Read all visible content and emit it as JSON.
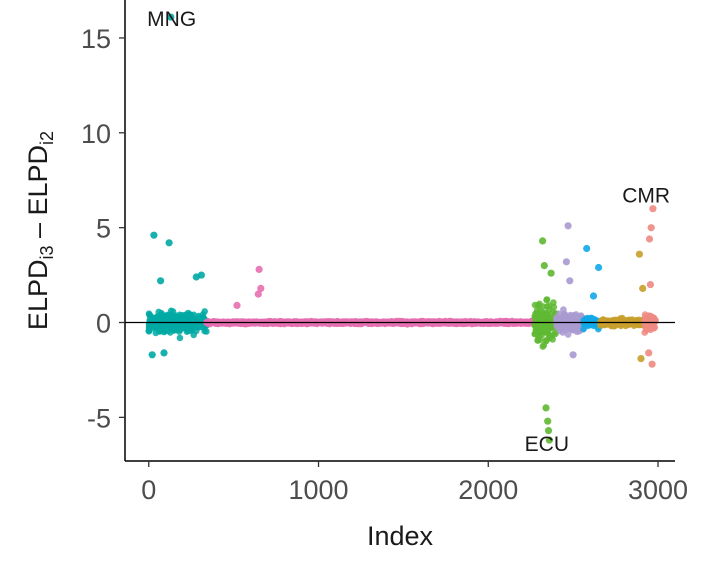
{
  "chart_data": {
    "type": "scatter",
    "title": "",
    "xlabel": "Index",
    "ylabel_parts": [
      "ELPD",
      "i3",
      " – ELPD",
      "i2"
    ],
    "xlim": [
      -140,
      3100
    ],
    "ylim": [
      -7.3,
      17
    ],
    "x_ticks": [
      0,
      1000,
      2000,
      3000
    ],
    "x_tick_labels": [
      "0",
      "1000",
      "2000",
      "3000"
    ],
    "y_ticks": [
      -5,
      0,
      5,
      10,
      15
    ],
    "y_tick_labels": [
      "-5",
      "0",
      "5",
      "10",
      "15"
    ],
    "grid": false,
    "legend": "none",
    "reference_line_y": 0,
    "groups": [
      {
        "color": "#00A9A5",
        "x_range": [
          0,
          340
        ],
        "spread": 1.0
      },
      {
        "color": "#E56FB0",
        "x_range": [
          340,
          2270
        ],
        "spread": 0.12
      },
      {
        "color": "#5FB832",
        "x_range": [
          2270,
          2400
        ],
        "spread": 2.2
      },
      {
        "color": "#A99AD0",
        "x_range": [
          2400,
          2560
        ],
        "spread": 0.9
      },
      {
        "color": "#11A8E8",
        "x_range": [
          2560,
          2660
        ],
        "spread": 0.45
      },
      {
        "color": "#C79F2A",
        "x_range": [
          2660,
          2920
        ],
        "spread": 0.28
      },
      {
        "color": "#EE8A82",
        "x_range": [
          2920,
          2985
        ],
        "spread": 0.9
      }
    ],
    "highlight_points": [
      {
        "group": 0,
        "x": 130,
        "y": 16.1
      },
      {
        "group": 0,
        "x": 30,
        "y": 4.6
      },
      {
        "group": 0,
        "x": 120,
        "y": 4.2
      },
      {
        "group": 0,
        "x": 70,
        "y": 2.2
      },
      {
        "group": 0,
        "x": 310,
        "y": 2.5
      },
      {
        "group": 0,
        "x": 280,
        "y": 2.4
      },
      {
        "group": 0,
        "x": 90,
        "y": -1.6
      },
      {
        "group": 0,
        "x": 20,
        "y": -1.7
      },
      {
        "group": 1,
        "x": 650,
        "y": 2.8
      },
      {
        "group": 1,
        "x": 660,
        "y": 1.8
      },
      {
        "group": 1,
        "x": 645,
        "y": 1.5
      },
      {
        "group": 1,
        "x": 520,
        "y": 0.9
      },
      {
        "group": 2,
        "x": 2320,
        "y": 4.3
      },
      {
        "group": 2,
        "x": 2330,
        "y": 3.0
      },
      {
        "group": 2,
        "x": 2370,
        "y": 2.6
      },
      {
        "group": 2,
        "x": 2340,
        "y": -4.5
      },
      {
        "group": 2,
        "x": 2350,
        "y": -5.2
      },
      {
        "group": 2,
        "x": 2360,
        "y": -6.2
      },
      {
        "group": 2,
        "x": 2355,
        "y": -5.7
      },
      {
        "group": 3,
        "x": 2470,
        "y": 5.1
      },
      {
        "group": 3,
        "x": 2460,
        "y": 3.2
      },
      {
        "group": 3,
        "x": 2480,
        "y": 2.2
      },
      {
        "group": 3,
        "x": 2500,
        "y": -1.7
      },
      {
        "group": 4,
        "x": 2580,
        "y": 3.9
      },
      {
        "group": 4,
        "x": 2650,
        "y": 2.9
      },
      {
        "group": 4,
        "x": 2620,
        "y": 1.4
      },
      {
        "group": 5,
        "x": 2890,
        "y": 3.6
      },
      {
        "group": 5,
        "x": 2900,
        "y": -1.9
      },
      {
        "group": 5,
        "x": 2910,
        "y": 1.8
      },
      {
        "group": 6,
        "x": 2970,
        "y": 6.0
      },
      {
        "group": 6,
        "x": 2960,
        "y": 5.0
      },
      {
        "group": 6,
        "x": 2950,
        "y": 4.4
      },
      {
        "group": 6,
        "x": 2955,
        "y": 2.0
      },
      {
        "group": 6,
        "x": 2965,
        "y": -2.2
      },
      {
        "group": 6,
        "x": 2945,
        "y": -1.6
      }
    ],
    "annotations": [
      {
        "text": "MNG",
        "x": 135,
        "y": 16.1
      },
      {
        "text": "ECU",
        "x": 2345,
        "y": -6.3
      },
      {
        "text": "CMR",
        "x": 2930,
        "y": 6.8
      }
    ]
  }
}
